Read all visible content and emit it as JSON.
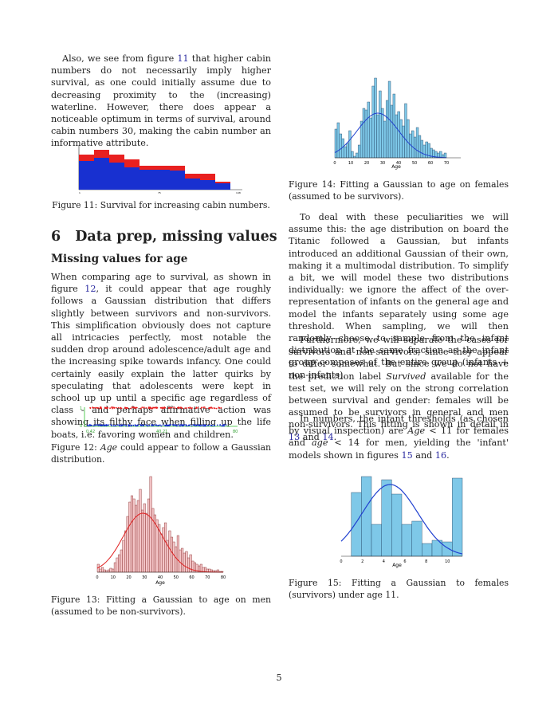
{
  "left_col": {
    "para1": "Also, we see from figure 11 that higher cabin numbers do not necessarily imply higher survival, as one could initially assume due to decreasing proximity to the (increasing) waterline. However, there does appear a noticeable optimum in terms of survival, around cabin numbers 30, making the cabin number an informative attribute.",
    "fig11_caption": "Figure 11: Survival for increasing cabin numbers.",
    "section_number": "6",
    "section_title": "Data prep, missing values",
    "subsection_title": "Missing values for age",
    "para2": "When comparing age to survival, as shown in figure 12, it could appear that age roughly follows a Gaussian distribution that differs slightly between survivors and non-survivors. This simplification obviously does not capture all intricacies perfectly, most notable the sudden drop around adolescence/adult age and the increasing spike towards infancy. One could certainly easily explain the latter quirks by speculating that adolescents were kept in school up up until a specific age regardless of class - and perhaps affirmative action was showing its filthy face when filling up the life boats, i.e. favoring women and children.",
    "fig12_caption": "Figure 12: Age could appear to follow a Gaussian distribution.",
    "fig13_caption": "Figure 13: Fitting a Gaussian to age on men (assumed to be non-survivors)."
  },
  "right_col": {
    "fig14_caption": "Figure 14: Fitting a Gaussian to age on females (assumed to be survivors).",
    "para3": "To deal with these peculiarities we will assume this: the age distribution on board the Titanic followed a Gaussian, but infants introduced an additional Gaussian of their own, making it a multimodal distribution. To simplify a bit, we will model these two distributions individually: we ignore the affect of the over-representation of infants on the general age and model the infants separately using some age threshold. When sampling, we will then randomly choose to sample from the infant distribution at the same fraction as the infant group composes of the entire group (infants + non-infants).",
    "para4": "Furthermore, we will separate the cases for survivors and non-survivors, since they appear to differ somewhat. But since we do not have the prediction label Survived available for the test set, we will rely on the strong correlation between survival and gender: females will be assumed to be survivors in general and men non-survivors. This fitting is shown in detail in 13 and 14.",
    "para5": "In numbers, the infant thresholds (as chosen by visual inspection) are Age < 11 for females and age < 14 for men, yielding the 'infant' models shown in figures 15 and 16.",
    "fig15_caption": "Figure 15: Fitting a Gaussian to females (survivors) under age 11."
  },
  "page_number": "5",
  "fig12_labels": {
    "y_top": "1",
    "y_bottom": "0",
    "x_left": "0.42",
    "x_mid": "40.21",
    "x_right": "80"
  },
  "fig13": {
    "xlabel": "Age",
    "ticks": [
      "0",
      "10",
      "20",
      "30",
      "40",
      "50",
      "60",
      "70",
      "80"
    ]
  },
  "fig14": {
    "xlabel": "Age",
    "ticks": [
      "0",
      "10",
      "20",
      "30",
      "40",
      "50",
      "60",
      "70"
    ]
  },
  "fig15": {
    "xlabel": "Age",
    "ticks": [
      "0",
      "2",
      "4",
      "6",
      "8",
      "10"
    ]
  },
  "colors": {
    "fig13_bar": "#f4c6c8",
    "fig13_curve": "#e02020",
    "blue_bar": "#7ec8e8",
    "blue_curve": "#2040d0",
    "red": "#e82020",
    "blue": "#1830d0"
  }
}
